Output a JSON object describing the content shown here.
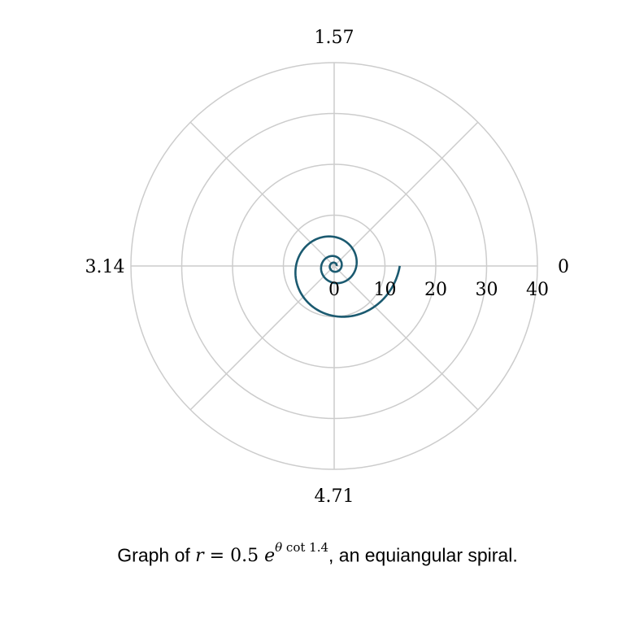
{
  "chart_data": {
    "type": "line",
    "projection": "polar",
    "angle_tick_labels": [
      {
        "theta": 0,
        "label": "0"
      },
      {
        "theta": 1.5708,
        "label": "1.57"
      },
      {
        "theta": 3.1416,
        "label": "3.14"
      },
      {
        "theta": 4.7124,
        "label": "4.71"
      }
    ],
    "angle_gridlines": [
      0,
      0.7854,
      1.5708,
      2.3562,
      3.1416,
      3.927,
      4.7124,
      5.4978
    ],
    "radial_ticks": [
      0,
      10,
      20,
      30,
      40
    ],
    "radial_tick_labels": [
      "0",
      "10",
      "20",
      "30",
      "40"
    ],
    "rlim": [
      0,
      40
    ],
    "grid": true,
    "series": [
      {
        "formula": {
          "a": 0.5,
          "alpha": 1.4
        },
        "theta_range": [
          0,
          18.85
        ],
        "color": "#1b5a70"
      }
    ]
  },
  "caption": {
    "prefix": "Graph of ",
    "var": "r",
    "equals": " = 0.5 ",
    "base": "e",
    "exponent_var": "θ",
    "exponent_rest": " cot 1.4",
    "suffix": ", an equiangular spiral."
  },
  "colors": {
    "grid": "#cccccc",
    "curve": "#1b5a70"
  }
}
